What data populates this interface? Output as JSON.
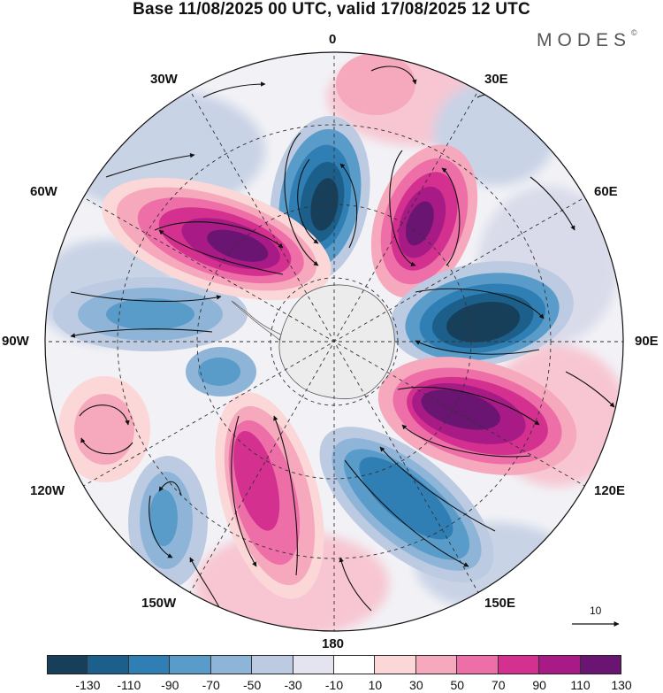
{
  "title": "Base 11/08/2025 00 UTC, valid 17/08/2025 12 UTC",
  "brand": "MODES",
  "brand_mark": "©",
  "longitude_labels": {
    "lon_0": "0",
    "lon_30e": "30E",
    "lon_60e": "60E",
    "lon_90e": "90E",
    "lon_120e": "120E",
    "lon_150e": "150E",
    "lon_180": "180",
    "lon_150w": "150W",
    "lon_120w": "120W",
    "lon_90w": "90W",
    "lon_60w": "60W",
    "lon_30w": "30W"
  },
  "vector_scale": "10",
  "colorbar": {
    "colors": [
      "#183f5a",
      "#1b5f8a",
      "#2f7fb4",
      "#5a9cc9",
      "#8eb4d8",
      "#bccbe2",
      "#e4e4f0",
      "#ffffff",
      "#fbd7d8",
      "#f6a9bd",
      "#ee6fa7",
      "#d4308f",
      "#a81a86",
      "#6a1572"
    ],
    "ticks": [
      "-130",
      "-110",
      "-90",
      "-70",
      "-50",
      "-30",
      "-10",
      "10",
      "30",
      "50",
      "70",
      "90",
      "110",
      "130"
    ]
  },
  "map": {
    "projection": "south polar stereographic",
    "anomalies": [
      {
        "name": "anomaly-negative-0",
        "value": -130,
        "color": "#1b4a6c"
      },
      {
        "name": "anomaly-positive-30e",
        "value": 130,
        "color": "#6a1572"
      },
      {
        "name": "anomaly-negative-90e",
        "value": -130,
        "color": "#183f5a"
      },
      {
        "name": "anomaly-positive-120e",
        "value": 130,
        "color": "#5a1468"
      },
      {
        "name": "anomaly-negative-150e",
        "value": -90,
        "color": "#2f7fb4"
      },
      {
        "name": "anomaly-positive-160w",
        "value": 90,
        "color": "#d4308f"
      },
      {
        "name": "anomaly-negative-140w",
        "value": -50,
        "color": "#8eb4d8"
      },
      {
        "name": "anomaly-positive-110w",
        "value": 50,
        "color": "#f6a9bd"
      },
      {
        "name": "anomaly-negative-80w",
        "value": -70,
        "color": "#5a9cc9"
      },
      {
        "name": "anomaly-positive-60w",
        "value": 130,
        "color": "#6a1572"
      }
    ]
  }
}
